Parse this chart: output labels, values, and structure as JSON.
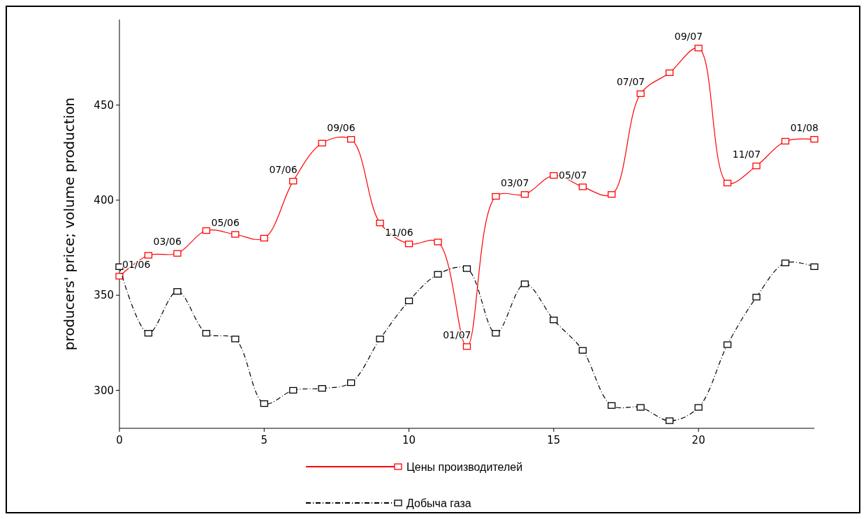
{
  "chart_data": {
    "type": "line",
    "ylabel": "producers' price; volume production",
    "x": [
      0,
      1,
      2,
      3,
      4,
      5,
      6,
      7,
      8,
      9,
      10,
      11,
      12,
      13,
      14,
      15,
      16,
      17,
      18,
      19,
      20,
      21,
      22,
      23,
      24
    ],
    "xlim": [
      0,
      24
    ],
    "xticks": [
      0,
      5,
      10,
      15,
      20
    ],
    "ylim": [
      280,
      495
    ],
    "yticks": [
      300,
      350,
      400,
      450
    ],
    "grid": false,
    "legend": "bottom",
    "marker": "square",
    "series": [
      {
        "name": "Цены производителей",
        "color": "#ff0000",
        "line_style": "solid",
        "values": [
          360,
          371,
          372,
          384,
          382,
          380,
          410,
          430,
          432,
          388,
          377,
          378,
          323,
          402,
          403,
          413,
          407,
          403,
          456,
          467,
          480,
          409,
          418,
          431,
          432
        ]
      },
      {
        "name": "Добыча газа",
        "color": "#000000",
        "line_style": "dashed",
        "values": [
          365,
          330,
          352,
          330,
          327,
          293,
          300,
          301,
          304,
          327,
          347,
          361,
          364,
          330,
          356,
          337,
          321,
          292,
          291,
          284,
          291,
          324,
          349,
          367,
          365
        ]
      }
    ],
    "annotations": [
      {
        "text": "01/06",
        "x": 0,
        "y": 360
      },
      {
        "text": "03/06",
        "x": 2,
        "y": 372
      },
      {
        "text": "05/06",
        "x": 4,
        "y": 382
      },
      {
        "text": "07/06",
        "x": 6,
        "y": 410
      },
      {
        "text": "09/06",
        "x": 8,
        "y": 432
      },
      {
        "text": "11/06",
        "x": 10,
        "y": 377
      },
      {
        "text": "01/07",
        "x": 12,
        "y": 323
      },
      {
        "text": "03/07",
        "x": 14,
        "y": 403
      },
      {
        "text": "05/07",
        "x": 16,
        "y": 407
      },
      {
        "text": "07/07",
        "x": 18,
        "y": 456
      },
      {
        "text": "09/07",
        "x": 20,
        "y": 480
      },
      {
        "text": "11/07",
        "x": 22,
        "y": 418
      },
      {
        "text": "01/08",
        "x": 24,
        "y": 432
      }
    ]
  }
}
